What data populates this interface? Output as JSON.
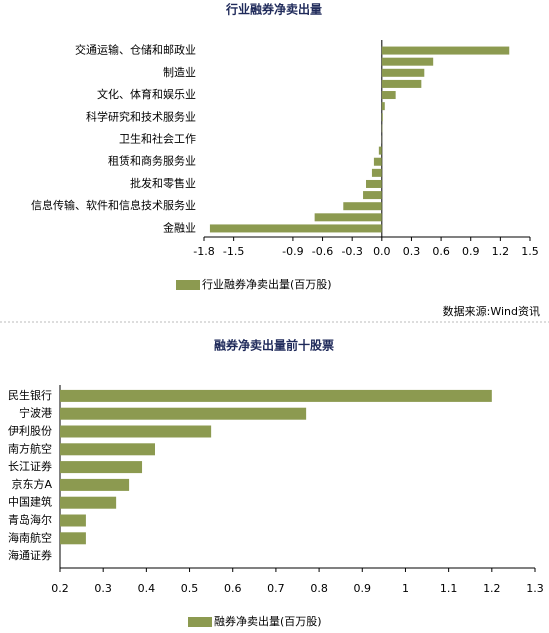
{
  "chart_data": [
    {
      "type": "bar",
      "orientation": "horizontal",
      "title": "行业融券净卖出量",
      "categories": [
        "交通运输、仓储和邮政业",
        null,
        "制造业",
        null,
        "文化、体育和娱乐业",
        null,
        "科学研究和技术服务业",
        null,
        "卫生和社会工作",
        null,
        "租赁和商务服务业",
        null,
        "批发和零售业",
        null,
        "信息传输、软件和信息技术服务业",
        null,
        "金融业"
      ],
      "series": [
        {
          "name": "行业融券净卖出量(百万股)",
          "color": "#8c9a50",
          "values": [
            1.29,
            0.52,
            0.43,
            0.4,
            0.14,
            0.03,
            0.01,
            0.005,
            0.002,
            -0.03,
            -0.08,
            -0.1,
            -0.16,
            -0.19,
            -0.39,
            -0.68,
            -1.74
          ]
        }
      ],
      "xlim": [
        -1.8,
        1.5
      ],
      "xticks": [
        -1.8,
        -1.5,
        -0.9,
        -0.6,
        -0.3,
        {
          "value": 0,
          "label": "0.0"
        },
        0.3,
        0.6,
        0.9,
        1.2,
        1.5
      ],
      "source": "数据来源:Wind资讯"
    },
    {
      "type": "bar",
      "orientation": "horizontal",
      "title": "融券净卖出量前十股票",
      "categories": [
        "民生银行",
        "宁波港",
        "伊利股份",
        "南方航空",
        "长江证券",
        "京东方A",
        "中国建筑",
        "青岛海尔",
        "海南航空",
        "海通证券"
      ],
      "series": [
        {
          "name": "融券净卖出量(百万股)",
          "color": "#8c9a50",
          "values": [
            1.2,
            0.77,
            0.55,
            0.42,
            0.39,
            0.36,
            0.33,
            0.26,
            0.26,
            0.2
          ]
        }
      ],
      "xlim": [
        0.2,
        1.3
      ],
      "xticks": [
        0.2,
        0.3,
        0.4,
        0.5,
        0.6,
        0.7,
        0.8,
        0.9,
        1,
        1.1,
        1.2,
        1.3
      ]
    }
  ]
}
